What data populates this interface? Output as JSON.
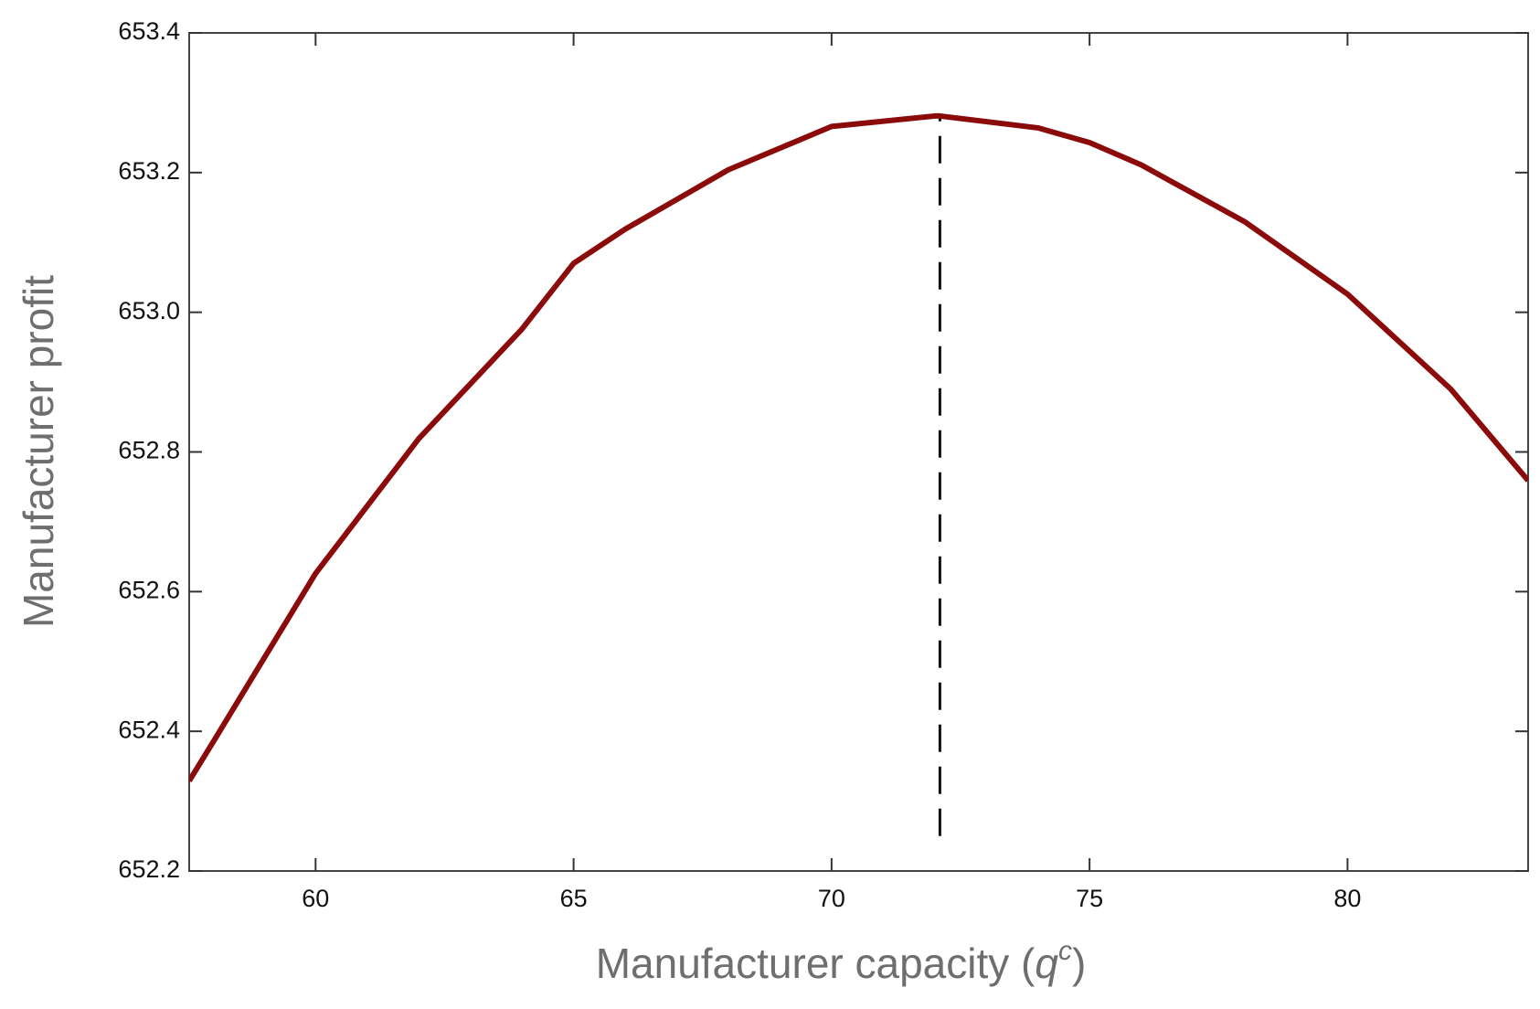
{
  "chart_data": {
    "type": "line",
    "xlabel": [
      "Manufacturer capacity  (",
      "q",
      "c",
      ")"
    ],
    "ylabel": "Manufacturer profit",
    "x": [
      57.55,
      58,
      60,
      62,
      64,
      65,
      66,
      68,
      70,
      72,
      72.1,
      74,
      75,
      76,
      78,
      80,
      82,
      83.5
    ],
    "series": [
      {
        "color": "#8b0a0a",
        "values": [
          652.329,
          652.383,
          652.626,
          652.819,
          652.976,
          653.07,
          653.119,
          653.204,
          653.266,
          653.281,
          653.281,
          653.264,
          653.243,
          653.211,
          653.13,
          653.026,
          652.89,
          652.759
        ]
      }
    ],
    "vline": {
      "x": 72.1,
      "y": [
        652.25,
        653.28
      ]
    },
    "xlim": [
      57.55,
      83.5
    ],
    "ylim": [
      652.2,
      653.4
    ],
    "xticks": [
      60,
      65,
      70,
      75,
      80
    ],
    "yticks": [
      652.2,
      652.4,
      652.6,
      652.8,
      {
        "value": 653,
        "label": "653.0"
      },
      653.2,
      653.4
    ]
  }
}
